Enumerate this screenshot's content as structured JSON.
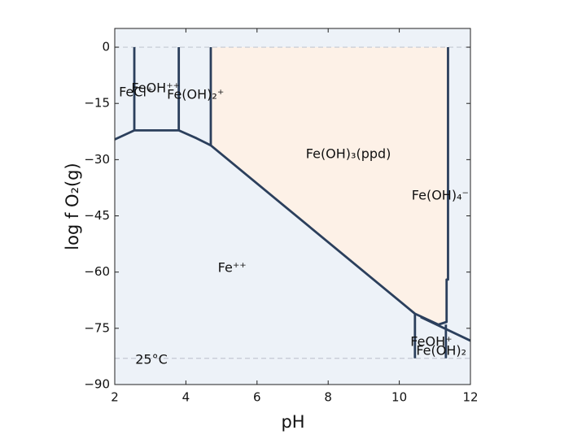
{
  "chart_data": {
    "type": "phase-diagram",
    "xlabel": "pH",
    "ylabel": "log f O₂(g)",
    "xlim": [
      2,
      12
    ],
    "ylim": [
      -90,
      5
    ],
    "xticks": [
      2,
      4,
      6,
      8,
      10,
      12
    ],
    "yticks": [
      0,
      {
        "value": -15,
        "label": "−15"
      },
      {
        "value": -30,
        "label": "−30"
      },
      {
        "value": -45,
        "label": "−45"
      },
      {
        "value": -60,
        "label": "−60"
      },
      {
        "value": -75,
        "label": "−75"
      },
      {
        "value": -90,
        "label": "−90"
      }
    ],
    "background_color": "#edf2f8",
    "boundary_color": "#2b3f5c",
    "hlines": [
      0,
      -83
    ],
    "hline_color": "#c3c8d2",
    "regions": [
      {
        "color": "#fdf1e7",
        "x": [
          4.7,
          11.37,
          11.37,
          11.33,
          11.1,
          10.44,
          4.7
        ],
        "values": [
          0,
          0,
          -62,
          -73.3,
          -74,
          -71.1,
          -26.2
        ]
      }
    ],
    "boundaries": [
      {
        "x": [
          2,
          2.55,
          3.8,
          4.3,
          4.7,
          10.44,
          11.1,
          11.33,
          11.33,
          11.37,
          11.37
        ],
        "values": [
          -24.6,
          -22.2,
          -22.2,
          -24.3,
          -26.2,
          -71.1,
          -74,
          -73.3,
          -62,
          -62,
          0
        ]
      },
      {
        "x": [
          2.55,
          2.55
        ],
        "values": [
          0,
          -22.2
        ]
      },
      {
        "x": [
          3.8,
          3.8
        ],
        "values": [
          0,
          -22.2
        ]
      },
      {
        "x": [
          4.7,
          4.7
        ],
        "values": [
          0,
          -26.2
        ]
      },
      {
        "x": [
          10.44,
          10.44
        ],
        "values": [
          -71.1,
          -83
        ]
      },
      {
        "x": [
          10.6,
          12
        ],
        "values": [
          -72,
          -78.3
        ]
      },
      {
        "x": [
          11.31,
          11.31
        ],
        "values": [
          -74,
          -83
        ]
      }
    ],
    "annotations": [
      {
        "text": "FeCl⁺",
        "x": 2.6,
        "y": -12.1
      },
      {
        "text": "FeOH⁺⁺",
        "x": 3.15,
        "y": -11
      },
      {
        "text": "Fe(OH)₂⁺",
        "x": 4.27,
        "y": -12.8
      },
      {
        "text": "Fe(OH)₃(ppd)",
        "x": 8.57,
        "y": -28.6
      },
      {
        "text": "Fe(OH)₄⁻",
        "x": 11.15,
        "y": -39.7
      },
      {
        "text": "Fe⁺⁺",
        "x": 5.3,
        "y": -59
      },
      {
        "text": "FeOH⁺",
        "x": 10.9,
        "y": -78.7
      },
      {
        "text": "Fe(OH)₂",
        "x": 11.18,
        "y": -81.1
      },
      {
        "text": "25°C",
        "x": 3.03,
        "y": -83.5
      }
    ]
  }
}
